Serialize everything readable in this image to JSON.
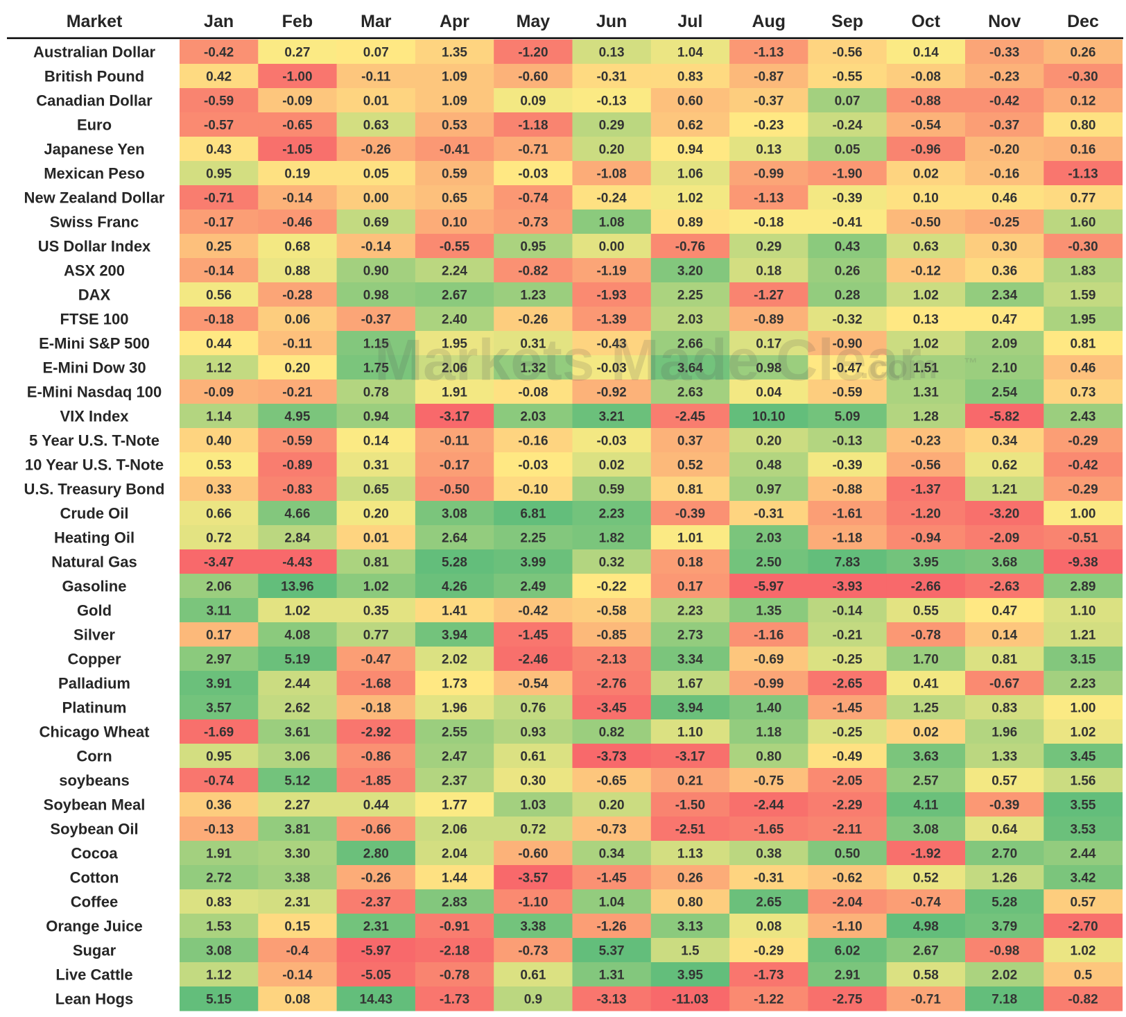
{
  "chart_data": {
    "type": "heatmap",
    "corner_label": "Market",
    "columns": [
      "Jan",
      "Feb",
      "Mar",
      "Apr",
      "May",
      "Jun",
      "Jul",
      "Aug",
      "Sep",
      "Oct",
      "Nov",
      "Dec"
    ],
    "rows": [
      {
        "label": "Australian Dollar",
        "values": [
          "-0.42",
          "0.27",
          "0.07",
          "1.35",
          "-1.20",
          "0.13",
          "1.04",
          "-1.13",
          "-0.56",
          "0.14",
          "-0.33",
          "0.26"
        ]
      },
      {
        "label": "British Pound",
        "values": [
          "0.42",
          "-1.00",
          "-0.11",
          "1.09",
          "-0.60",
          "-0.31",
          "0.83",
          "-0.87",
          "-0.55",
          "-0.08",
          "-0.23",
          "-0.30"
        ]
      },
      {
        "label": "Canadian Dollar",
        "values": [
          "-0.59",
          "-0.09",
          "0.01",
          "1.09",
          "0.09",
          "-0.13",
          "0.60",
          "-0.37",
          "0.07",
          "-0.88",
          "-0.42",
          "0.12"
        ]
      },
      {
        "label": "Euro",
        "values": [
          "-0.57",
          "-0.65",
          "0.63",
          "0.53",
          "-1.18",
          "0.29",
          "0.62",
          "-0.23",
          "-0.24",
          "-0.54",
          "-0.37",
          "0.80"
        ]
      },
      {
        "label": "Japanese Yen",
        "values": [
          "0.43",
          "-1.05",
          "-0.26",
          "-0.41",
          "-0.71",
          "0.20",
          "0.94",
          "0.13",
          "0.05",
          "-0.96",
          "-0.20",
          "0.16"
        ]
      },
      {
        "label": "Mexican Peso",
        "values": [
          "0.95",
          "0.19",
          "0.05",
          "0.59",
          "-0.03",
          "-1.08",
          "1.06",
          "-0.99",
          "-1.90",
          "0.02",
          "-0.16",
          "-1.13"
        ]
      },
      {
        "label": "New Zealand Dollar",
        "values": [
          "-0.71",
          "-0.14",
          "0.00",
          "0.65",
          "-0.74",
          "-0.24",
          "1.02",
          "-1.13",
          "-0.39",
          "0.10",
          "0.46",
          "0.77"
        ]
      },
      {
        "label": "Swiss Franc",
        "values": [
          "-0.17",
          "-0.46",
          "0.69",
          "0.10",
          "-0.73",
          "1.08",
          "0.89",
          "-0.18",
          "-0.41",
          "-0.50",
          "-0.25",
          "1.60"
        ]
      },
      {
        "label": "US Dollar Index",
        "values": [
          "0.25",
          "0.68",
          "-0.14",
          "-0.55",
          "0.95",
          "0.00",
          "-0.76",
          "0.29",
          "0.43",
          "0.63",
          "0.30",
          "-0.30"
        ]
      },
      {
        "label": "ASX 200",
        "values": [
          "-0.14",
          "0.88",
          "0.90",
          "2.24",
          "-0.82",
          "-1.19",
          "3.20",
          "0.18",
          "0.26",
          "-0.12",
          "0.36",
          "1.83"
        ]
      },
      {
        "label": "DAX",
        "values": [
          "0.56",
          "-0.28",
          "0.98",
          "2.67",
          "1.23",
          "-1.93",
          "2.25",
          "-1.27",
          "0.28",
          "1.02",
          "2.34",
          "1.59"
        ]
      },
      {
        "label": "FTSE 100",
        "values": [
          "-0.18",
          "0.06",
          "-0.37",
          "2.40",
          "-0.26",
          "-1.39",
          "2.03",
          "-0.89",
          "-0.32",
          "0.13",
          "0.47",
          "1.95"
        ]
      },
      {
        "label": "E-Mini S&P 500",
        "values": [
          "0.44",
          "-0.11",
          "1.15",
          "1.95",
          "0.31",
          "-0.43",
          "2.66",
          "0.17",
          "-0.90",
          "1.02",
          "2.09",
          "0.81"
        ]
      },
      {
        "label": "E-Mini Dow 30",
        "values": [
          "1.12",
          "0.20",
          "1.75",
          "2.06",
          "1.32",
          "-0.03",
          "3.64",
          "0.98",
          "-0.47",
          "1.51",
          "2.10",
          "0.46"
        ]
      },
      {
        "label": "E-Mini Nasdaq 100",
        "values": [
          "-0.09",
          "-0.21",
          "0.78",
          "1.91",
          "-0.08",
          "-0.92",
          "2.63",
          "0.04",
          "-0.59",
          "1.31",
          "2.54",
          "0.73"
        ]
      },
      {
        "label": "VIX Index",
        "values": [
          "1.14",
          "4.95",
          "0.94",
          "-3.17",
          "2.03",
          "3.21",
          "-2.45",
          "10.10",
          "5.09",
          "1.28",
          "-5.82",
          "2.43"
        ]
      },
      {
        "label": "5 Year U.S. T-Note",
        "values": [
          "0.40",
          "-0.59",
          "0.14",
          "-0.11",
          "-0.16",
          "-0.03",
          "0.37",
          "0.20",
          "-0.13",
          "-0.23",
          "0.34",
          "-0.29"
        ]
      },
      {
        "label": "10 Year U.S. T-Note",
        "values": [
          "0.53",
          "-0.89",
          "0.31",
          "-0.17",
          "-0.03",
          "0.02",
          "0.52",
          "0.48",
          "-0.39",
          "-0.56",
          "0.62",
          "-0.42"
        ]
      },
      {
        "label": "U.S. Treasury Bond",
        "values": [
          "0.33",
          "-0.83",
          "0.65",
          "-0.50",
          "-0.10",
          "0.59",
          "0.81",
          "0.97",
          "-0.88",
          "-1.37",
          "1.21",
          "-0.29"
        ]
      },
      {
        "label": "Crude Oil",
        "values": [
          "0.66",
          "4.66",
          "0.20",
          "3.08",
          "6.81",
          "2.23",
          "-0.39",
          "-0.31",
          "-1.61",
          "-1.20",
          "-3.20",
          "1.00"
        ]
      },
      {
        "label": "Heating Oil",
        "values": [
          "0.72",
          "2.84",
          "0.01",
          "2.64",
          "2.25",
          "1.82",
          "1.01",
          "2.03",
          "-1.18",
          "-0.94",
          "-2.09",
          "-0.51"
        ]
      },
      {
        "label": "Natural Gas",
        "values": [
          "-3.47",
          "-4.43",
          "0.81",
          "5.28",
          "3.99",
          "0.32",
          "0.18",
          "2.50",
          "7.83",
          "3.95",
          "3.68",
          "-9.38"
        ]
      },
      {
        "label": "Gasoline",
        "values": [
          "2.06",
          "13.96",
          "1.02",
          "4.26",
          "2.49",
          "-0.22",
          "0.17",
          "-5.97",
          "-3.93",
          "-2.66",
          "-2.63",
          "2.89"
        ]
      },
      {
        "label": "Gold",
        "values": [
          "3.11",
          "1.02",
          "0.35",
          "1.41",
          "-0.42",
          "-0.58",
          "2.23",
          "1.35",
          "-0.14",
          "0.55",
          "0.47",
          "1.10"
        ]
      },
      {
        "label": "Silver",
        "values": [
          "0.17",
          "4.08",
          "0.77",
          "3.94",
          "-1.45",
          "-0.85",
          "2.73",
          "-1.16",
          "-0.21",
          "-0.78",
          "0.14",
          "1.21"
        ]
      },
      {
        "label": "Copper",
        "values": [
          "2.97",
          "5.19",
          "-0.47",
          "2.02",
          "-2.46",
          "-2.13",
          "3.34",
          "-0.69",
          "-0.25",
          "1.70",
          "0.81",
          "3.15"
        ]
      },
      {
        "label": "Palladium",
        "values": [
          "3.91",
          "2.44",
          "-1.68",
          "1.73",
          "-0.54",
          "-2.76",
          "1.67",
          "-0.99",
          "-2.65",
          "0.41",
          "-0.67",
          "2.23"
        ]
      },
      {
        "label": "Platinum",
        "values": [
          "3.57",
          "2.62",
          "-0.18",
          "1.96",
          "0.76",
          "-3.45",
          "3.94",
          "1.40",
          "-1.45",
          "1.25",
          "0.83",
          "1.00"
        ]
      },
      {
        "label": "Chicago Wheat",
        "values": [
          "-1.69",
          "3.61",
          "-2.92",
          "2.55",
          "0.93",
          "0.82",
          "1.10",
          "1.18",
          "-0.25",
          "0.02",
          "1.96",
          "1.02"
        ]
      },
      {
        "label": "Corn",
        "values": [
          "0.95",
          "3.06",
          "-0.86",
          "2.47",
          "0.61",
          "-3.73",
          "-3.17",
          "0.80",
          "-0.49",
          "3.63",
          "1.33",
          "3.45"
        ]
      },
      {
        "label": "soybeans",
        "values": [
          "-0.74",
          "5.12",
          "-1.85",
          "2.37",
          "0.30",
          "-0.65",
          "0.21",
          "-0.75",
          "-2.05",
          "2.57",
          "0.57",
          "1.56"
        ]
      },
      {
        "label": "Soybean Meal",
        "values": [
          "0.36",
          "2.27",
          "0.44",
          "1.77",
          "1.03",
          "0.20",
          "-1.50",
          "-2.44",
          "-2.29",
          "4.11",
          "-0.39",
          "3.55"
        ]
      },
      {
        "label": "Soybean Oil",
        "values": [
          "-0.13",
          "3.81",
          "-0.66",
          "2.06",
          "0.72",
          "-0.73",
          "-2.51",
          "-1.65",
          "-2.11",
          "3.08",
          "0.64",
          "3.53"
        ]
      },
      {
        "label": "Cocoa",
        "values": [
          "1.91",
          "3.30",
          "2.80",
          "2.04",
          "-0.60",
          "0.34",
          "1.13",
          "0.38",
          "0.50",
          "-1.92",
          "2.70",
          "2.44"
        ]
      },
      {
        "label": "Cotton",
        "values": [
          "2.72",
          "3.38",
          "-0.26",
          "1.44",
          "-3.57",
          "-1.45",
          "0.26",
          "-0.31",
          "-0.62",
          "0.52",
          "1.26",
          "3.42"
        ]
      },
      {
        "label": "Coffee",
        "values": [
          "0.83",
          "2.31",
          "-2.37",
          "2.83",
          "-1.10",
          "1.04",
          "0.80",
          "2.65",
          "-2.04",
          "-0.74",
          "5.28",
          "0.57"
        ]
      },
      {
        "label": "Orange Juice",
        "values": [
          "1.53",
          "0.15",
          "2.31",
          "-0.91",
          "3.38",
          "-1.26",
          "3.13",
          "0.08",
          "-1.10",
          "4.98",
          "3.79",
          "-2.70"
        ]
      },
      {
        "label": "Sugar",
        "values": [
          "3.08",
          "-0.4",
          "-5.97",
          "-2.18",
          "-0.73",
          "5.37",
          "1.5",
          "-0.29",
          "6.02",
          "2.67",
          "-0.98",
          "1.02"
        ]
      },
      {
        "label": "Live Cattle",
        "values": [
          "1.12",
          "-0.14",
          "-5.05",
          "-0.78",
          "0.61",
          "1.31",
          "3.95",
          "-1.73",
          "2.91",
          "0.58",
          "2.02",
          "0.5"
        ]
      },
      {
        "label": "Lean Hogs",
        "values": [
          "5.15",
          "0.08",
          "14.43",
          "-1.73",
          "0.9",
          "-3.13",
          "-11.03",
          "-1.22",
          "-2.75",
          "-0.71",
          "7.18",
          "-0.82"
        ]
      }
    ],
    "color_scale": {
      "low": "#f8696b",
      "mid": "#ffeb84",
      "high": "#63be7b"
    },
    "watermark": {
      "brand": "Markets Made Clear",
      "suffix": ".com",
      "mark": "™"
    }
  }
}
